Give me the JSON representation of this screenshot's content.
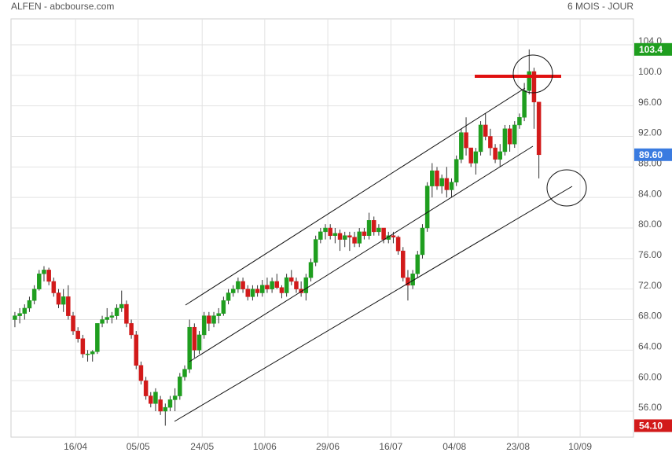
{
  "chart_data": {
    "type": "candlestick",
    "title": "ALFEN - abcbourse.com",
    "subtitle": "6 MOIS - JOUR",
    "up_color": "#1f9e1f",
    "down_color": "#d21a1a",
    "xlim": [
      -0.8,
      127.5
    ],
    "ylim": [
      52.6,
      107.4
    ],
    "grid": true,
    "xticks": [
      {
        "value": 12.5,
        "label": "16/04"
      },
      {
        "value": 25.4,
        "label": "05/05"
      },
      {
        "value": 38.6,
        "label": "24/05"
      },
      {
        "value": 51.5,
        "label": "10/06"
      },
      {
        "value": 64.5,
        "label": "29/06"
      },
      {
        "value": 77.5,
        "label": "16/07"
      },
      {
        "value": 90.6,
        "label": "04/08"
      },
      {
        "value": 103.7,
        "label": "23/08"
      },
      {
        "value": 116.5,
        "label": "10/09"
      }
    ],
    "yticks": [
      {
        "value": 56,
        "label": "56.00"
      },
      {
        "value": 60,
        "label": "60.00"
      },
      {
        "value": 64,
        "label": "64.00"
      },
      {
        "value": 68,
        "label": "68.00"
      },
      {
        "value": 72,
        "label": "72.00"
      },
      {
        "value": 76,
        "label": "76.00"
      },
      {
        "value": 80,
        "label": "80.00"
      },
      {
        "value": 84,
        "label": "84.00"
      },
      {
        "value": 88,
        "label": "88.00"
      },
      {
        "value": 92,
        "label": "92.00"
      },
      {
        "value": 96,
        "label": "96.00"
      },
      {
        "value": 100,
        "label": "100.0"
      },
      {
        "value": 104,
        "label": "104.0"
      }
    ],
    "price_markers": [
      {
        "value": 103.4,
        "label": "103.4",
        "color": "#1f9e1f"
      },
      {
        "value": 89.6,
        "label": "89.60",
        "color": "#3a7be0"
      },
      {
        "value": 54.1,
        "label": "54.10",
        "color": "#d21a1a"
      }
    ],
    "candles": [
      [
        68,
        69,
        67,
        68.5
      ],
      [
        68.5,
        69.5,
        67.5,
        68.8
      ],
      [
        68.8,
        70,
        68,
        69.5
      ],
      [
        69.5,
        71,
        69,
        70.5
      ],
      [
        70.5,
        72.5,
        70,
        72
      ],
      [
        72,
        74.5,
        71.8,
        74
      ],
      [
        74,
        75,
        73,
        74.5
      ],
      [
        74.5,
        74.8,
        72.5,
        73
      ],
      [
        73,
        73.5,
        71,
        71.5
      ],
      [
        71.5,
        72,
        69.5,
        70
      ],
      [
        70,
        72,
        69,
        71
      ],
      [
        71,
        72.5,
        68,
        68.5
      ],
      [
        68.5,
        69,
        66,
        66.5
      ],
      [
        66.5,
        67,
        65,
        65.5
      ],
      [
        65.5,
        66,
        63,
        63.5
      ],
      [
        63.5,
        64,
        62.5,
        63.5
      ],
      [
        63.5,
        64,
        62.5,
        63.8
      ],
      [
        63.8,
        67.5,
        63.5,
        67.5
      ],
      [
        67.5,
        68.5,
        67,
        68
      ],
      [
        68,
        69.5,
        67.5,
        68.3
      ],
      [
        68.3,
        69,
        67.5,
        68.5
      ],
      [
        68.5,
        70,
        68,
        69.5
      ],
      [
        69.5,
        71.8,
        69,
        70
      ],
      [
        70,
        70.5,
        67,
        67.5
      ],
      [
        67.5,
        68,
        65.5,
        66
      ],
      [
        66,
        66.5,
        61.5,
        62
      ],
      [
        62,
        62.5,
        59.5,
        60
      ],
      [
        60,
        60.5,
        57.5,
        58
      ],
      [
        58,
        58.5,
        56.5,
        57
      ],
      [
        57,
        59,
        56,
        58.5
      ],
      [
        57.5,
        58,
        55.5,
        56
      ],
      [
        56,
        57,
        54.1,
        56.5
      ],
      [
        56.5,
        58,
        56,
        57.5
      ],
      [
        57.5,
        59,
        56,
        58
      ],
      [
        58,
        61,
        57.5,
        60.5
      ],
      [
        60.5,
        62,
        60,
        61.5
      ],
      [
        61.5,
        68,
        61,
        67
      ],
      [
        67,
        67.5,
        63,
        64
      ],
      [
        64,
        66.5,
        63.5,
        66
      ],
      [
        66,
        69,
        65.5,
        68.5
      ],
      [
        68.5,
        69,
        66.5,
        67.5
      ],
      [
        67.5,
        69,
        67,
        68.5
      ],
      [
        68.5,
        69.5,
        67.5,
        68.8
      ],
      [
        68.8,
        71,
        68.5,
        70.5
      ],
      [
        70.5,
        72,
        70,
        71.5
      ],
      [
        71.5,
        72.5,
        71,
        72
      ],
      [
        72,
        73.5,
        71.5,
        73
      ],
      [
        73,
        73.5,
        71.5,
        72
      ],
      [
        72,
        72.5,
        70.5,
        71
      ],
      [
        71,
        72.5,
        70.5,
        72
      ],
      [
        72,
        72.5,
        71,
        71.5
      ],
      [
        71.5,
        73.2,
        71,
        72.5
      ],
      [
        72.5,
        73.5,
        71.5,
        72
      ],
      [
        72,
        73.5,
        71.5,
        73
      ],
      [
        73,
        74,
        72,
        72.2
      ],
      [
        72.2,
        72.5,
        70.8,
        71.5
      ],
      [
        71.5,
        74,
        71,
        73.5
      ],
      [
        73.5,
        74.5,
        72.5,
        73
      ],
      [
        73,
        73.5,
        71.5,
        72
      ],
      [
        72,
        73,
        71,
        71.5
      ],
      [
        71.5,
        74,
        70.5,
        73.5
      ],
      [
        73.5,
        76,
        73,
        75.5
      ],
      [
        75.5,
        79,
        75,
        78.5
      ],
      [
        78.5,
        80,
        78,
        79.5
      ],
      [
        79.5,
        80.5,
        78.5,
        80
      ],
      [
        80,
        80.5,
        78.5,
        79
      ],
      [
        79,
        80,
        78,
        79.3
      ],
      [
        79.3,
        79.8,
        77,
        78.5
      ],
      [
        78.5,
        79.5,
        77.5,
        79
      ],
      [
        79,
        79.5,
        77,
        78.8
      ],
      [
        78.8,
        79.5,
        77.5,
        78
      ],
      [
        78,
        80,
        77.5,
        79.5
      ],
      [
        79.5,
        80,
        78.5,
        79
      ],
      [
        79,
        82,
        78.5,
        81
      ],
      [
        81,
        81.5,
        79,
        79.5
      ],
      [
        79.5,
        80.5,
        79,
        80
      ],
      [
        80,
        80,
        78,
        78.5
      ],
      [
        78.5,
        79.5,
        78,
        79
      ],
      [
        79,
        79.5,
        78,
        78.8
      ],
      [
        78.8,
        79,
        76.5,
        77
      ],
      [
        77,
        77.5,
        73,
        73.5
      ],
      [
        73.5,
        74.5,
        70.5,
        72.5
      ],
      [
        72.5,
        74.5,
        72,
        74
      ],
      [
        74,
        77,
        73.5,
        76.5
      ],
      [
        76.5,
        80.5,
        76,
        80
      ],
      [
        80,
        86,
        79.5,
        85.5
      ],
      [
        85.5,
        88.5,
        84,
        87.5
      ],
      [
        87.5,
        88,
        85,
        85.5
      ],
      [
        85.5,
        87,
        84.5,
        86.5
      ],
      [
        86.5,
        88,
        84,
        85
      ],
      [
        85,
        86.5,
        84,
        86
      ],
      [
        86,
        89.5,
        85.5,
        89
      ],
      [
        89,
        93,
        88.5,
        92.5
      ],
      [
        92.5,
        94.5,
        89.5,
        90.5
      ],
      [
        90.5,
        90.5,
        88,
        88.5
      ],
      [
        88.5,
        90.5,
        87,
        90
      ],
      [
        90,
        94,
        89.5,
        93.5
      ],
      [
        93.5,
        95,
        91.5,
        92
      ],
      [
        92,
        93,
        89.5,
        90.5
      ],
      [
        90.5,
        91,
        88.5,
        89
      ],
      [
        89,
        91,
        88,
        90
      ],
      [
        90,
        93.5,
        89.5,
        93
      ],
      [
        93,
        93.5,
        90,
        91
      ],
      [
        91,
        94,
        90.5,
        93.5
      ],
      [
        93.5,
        95,
        93,
        94.5
      ],
      [
        94.5,
        99,
        94,
        98
      ],
      [
        98,
        103.4,
        97.5,
        100.5
      ],
      [
        100.5,
        101,
        93,
        96.5
      ],
      [
        96.5,
        96.5,
        86.5,
        89.6
      ]
    ]
  }
}
